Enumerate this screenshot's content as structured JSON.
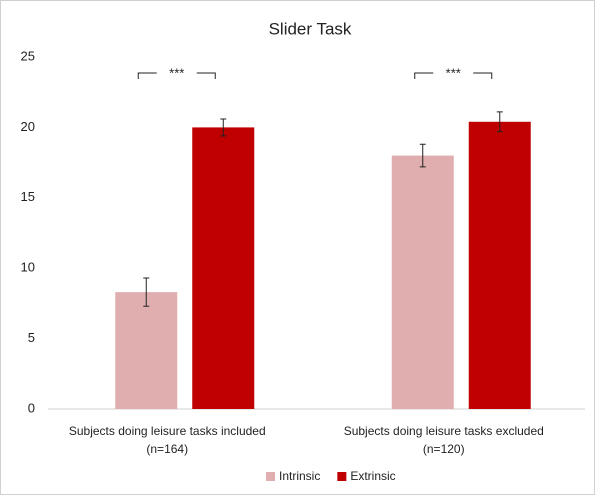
{
  "chart_data": {
    "type": "bar",
    "title": "Slider Task",
    "categories": [
      [
        "Subjects doing leisure tasks included",
        "(n=164)"
      ],
      [
        "Subjects doing  leisure tasks excluded",
        "(n=120)"
      ]
    ],
    "series": [
      {
        "name": "Intrinsic",
        "color": "#e0aeae",
        "values": [
          8.3,
          18.0
        ],
        "errors": [
          1.0,
          0.8
        ]
      },
      {
        "name": "Extrinsic",
        "color": "#c00000",
        "values": [
          20.0,
          20.4
        ],
        "errors": [
          0.6,
          0.7
        ]
      }
    ],
    "annotations": [
      "***",
      "***"
    ],
    "ylim": [
      0,
      25
    ],
    "yticks": [
      0,
      5,
      10,
      15,
      20,
      25
    ],
    "grid": false,
    "legend": "bottom"
  }
}
